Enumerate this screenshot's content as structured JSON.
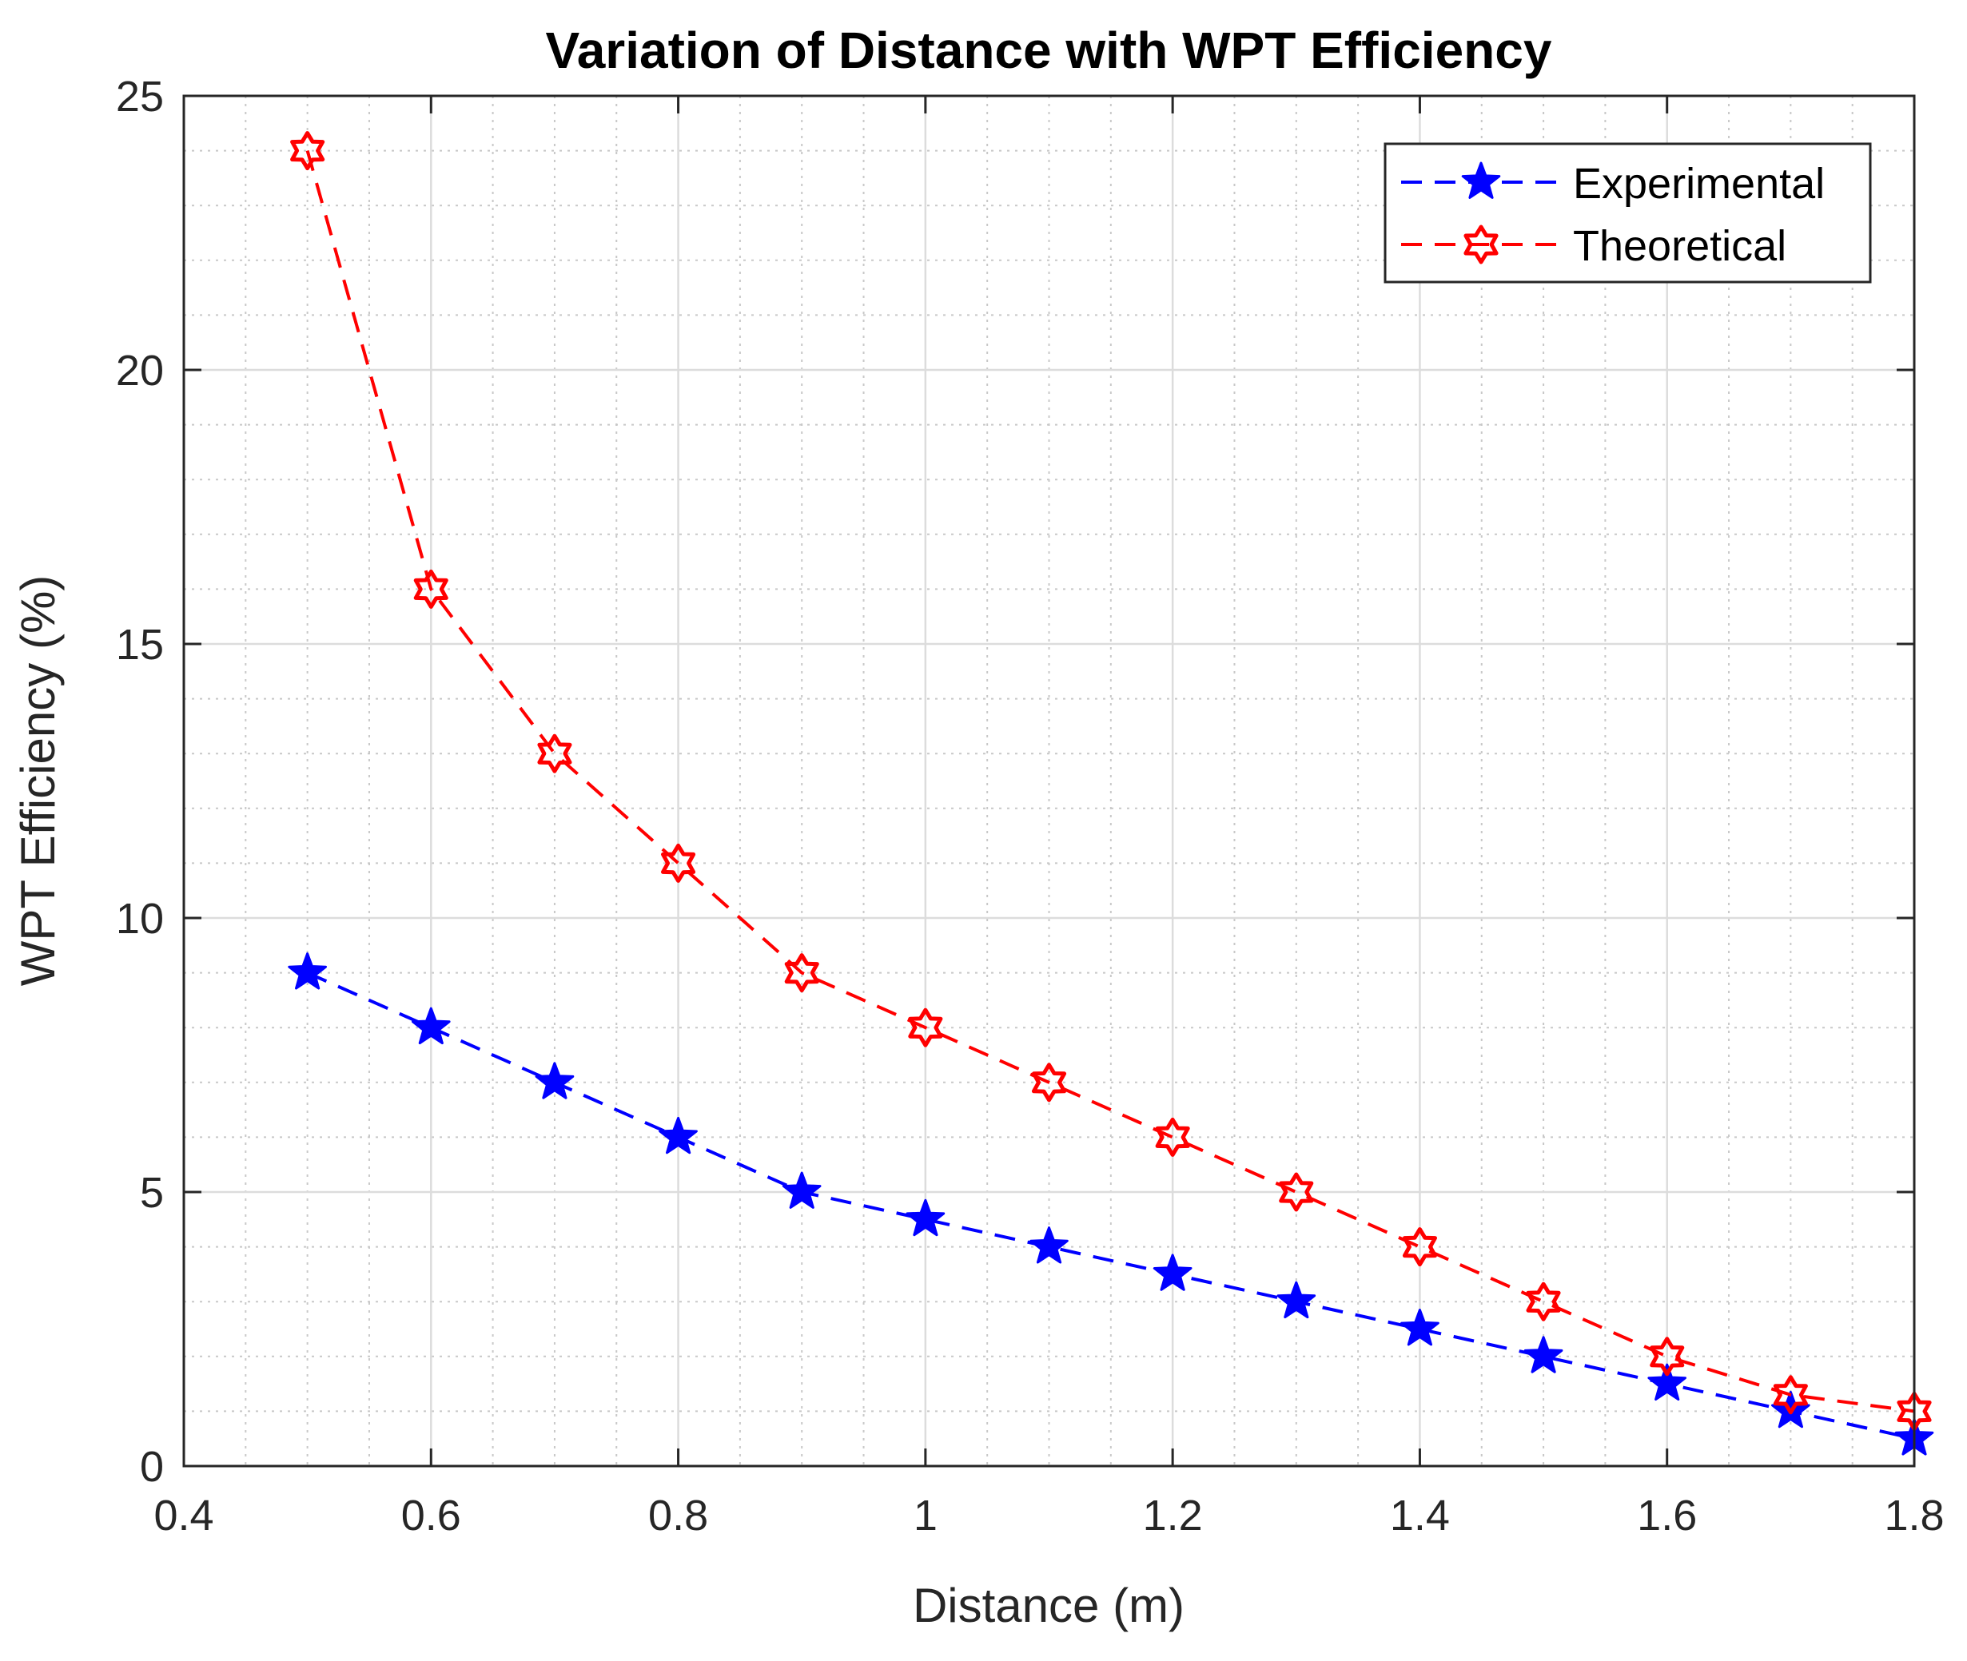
{
  "chart_data": {
    "type": "line",
    "title": "Variation of Distance with WPT Efficiency",
    "xlabel": "Distance (m)",
    "ylabel": "WPT Efficiency (%)",
    "xlim": [
      0.4,
      1.8
    ],
    "ylim": [
      0,
      25
    ],
    "x_ticks": [
      0.4,
      0.6,
      0.8,
      1.0,
      1.2,
      1.4,
      1.6,
      1.8
    ],
    "x_tick_labels": [
      "0.4",
      "0.6",
      "0.8",
      "1",
      "1.2",
      "1.4",
      "1.6",
      "1.8"
    ],
    "y_ticks": [
      0,
      5,
      10,
      15,
      20,
      25
    ],
    "y_tick_labels": [
      "0",
      "5",
      "10",
      "15",
      "20",
      "25"
    ],
    "grid": true,
    "minor_grid": true,
    "legend_position": "top-right",
    "x": [
      0.5,
      0.6,
      0.7,
      0.8,
      0.9,
      1.0,
      1.1,
      1.2,
      1.3,
      1.4,
      1.5,
      1.6,
      1.7,
      1.8
    ],
    "series": [
      {
        "name": "Experimental",
        "color": "#0000ff",
        "line_style": "dashed",
        "marker": "star",
        "values": [
          9,
          8,
          7,
          6,
          5,
          4.5,
          4,
          3.5,
          3,
          2.5,
          2,
          1.5,
          1,
          0.5
        ]
      },
      {
        "name": "Theoretical",
        "color": "#ff0000",
        "line_style": "dashed",
        "marker": "hexagram",
        "values": [
          24,
          16,
          13,
          11,
          9,
          8,
          7,
          6,
          5,
          4,
          3,
          2,
          1.3,
          1
        ]
      }
    ]
  }
}
